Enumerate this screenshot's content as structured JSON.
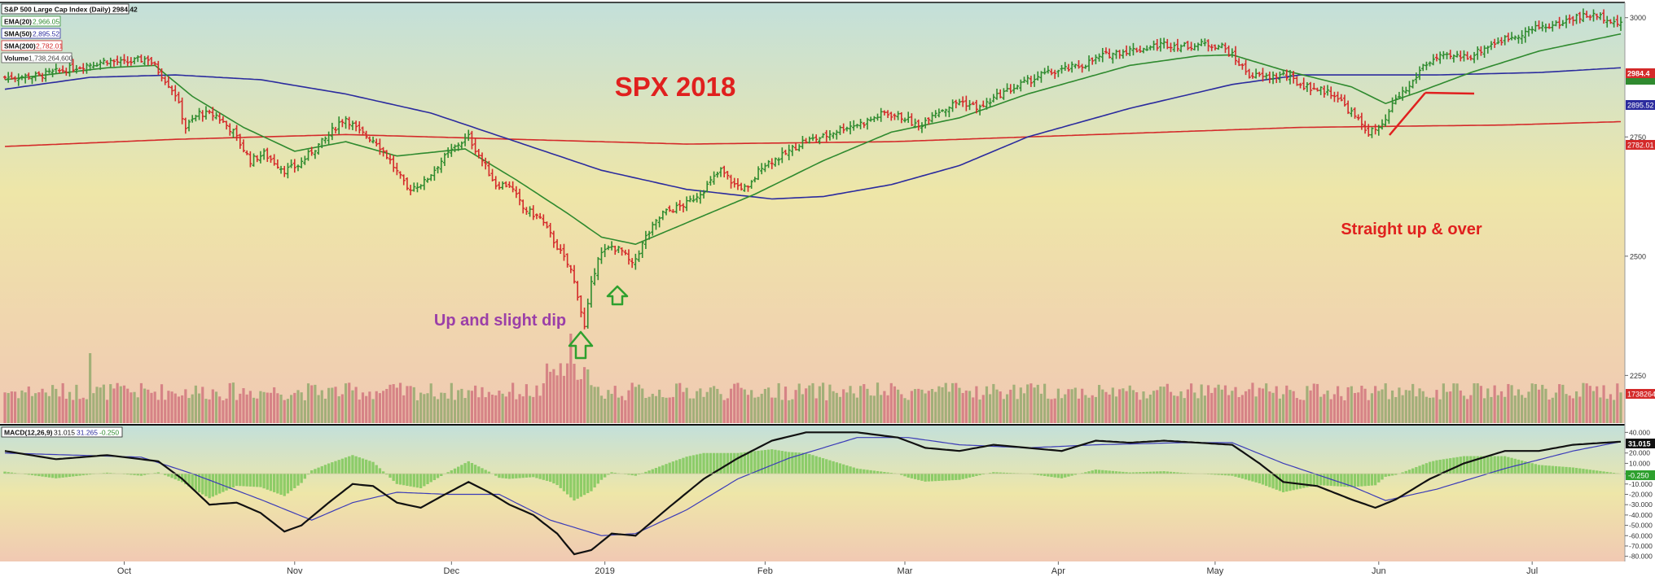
{
  "header": {
    "title": "S&P 500 Large Cap Index (Daily) 2984.42"
  },
  "legend": [
    {
      "label": "EMA(20)",
      "value": "2,966.05",
      "color": "#2f8a2f"
    },
    {
      "label": "SMA(50)",
      "value": "2,895.52",
      "color": "#2b2b9e"
    },
    {
      "label": "SMA(200)",
      "value": "2,782.01",
      "color": "#d42a2a"
    },
    {
      "label": "Volume",
      "value": "1,738,264,600",
      "color": "#555555"
    }
  ],
  "macd_legend": {
    "label": "MACD(12,26,9)",
    "v1": "31.015",
    "v2": "31.265",
    "v3": "-0.250"
  },
  "annotations": {
    "title": "SPX 2018",
    "left_note": "Up and slight dip",
    "right_note": "Straight up & over"
  },
  "price_badges": {
    "last": "2984.4",
    "sma50": "2895.52",
    "sma200": "2782.01",
    "volume": "1738264"
  },
  "macd_badges": {
    "macd": "31.015",
    "hist": "-0.250"
  },
  "colors": {
    "up": "#2e8b2e",
    "down": "#d42a2a",
    "ema20": "#2f8a2f",
    "sma50": "#2b2b9e",
    "sma200": "#d42a2a",
    "title_red": "#e0201e",
    "note_purple": "#9b3fa8",
    "arrow_green": "#2ea02e"
  },
  "chart_data": {
    "type": "line",
    "price_axis": {
      "ticks": [
        2250,
        2500,
        2750,
        3000
      ],
      "ylim": [
        2150,
        3020
      ]
    },
    "macd_axis": {
      "ticks": [
        40,
        20,
        10,
        0,
        -10,
        -20,
        -30,
        -40,
        -50,
        -60,
        -70,
        -80
      ],
      "tick_labels": [
        "40.000",
        "20.000",
        "10.000",
        "0.000",
        "-10.000",
        "-20.000",
        "-30.000",
        "-40.000",
        "-50.000",
        "-60.000",
        "-70.000",
        "-80.000"
      ],
      "ylim": [
        -85,
        45
      ]
    },
    "x_labels": [
      "Oct",
      "Nov",
      "Dec",
      "2019",
      "Feb",
      "Mar",
      "Apr",
      "May",
      "Jun",
      "Jul"
    ],
    "x_label_days": [
      35,
      85,
      131,
      176,
      223,
      264,
      309,
      355,
      403,
      448
    ],
    "n_days": 474,
    "close_anchors": [
      [
        0,
        2875
      ],
      [
        10,
        2878
      ],
      [
        20,
        2895
      ],
      [
        30,
        2910
      ],
      [
        35,
        2905
      ],
      [
        42,
        2915
      ],
      [
        46,
        2880
      ],
      [
        50,
        2840
      ],
      [
        53,
        2770
      ],
      [
        57,
        2800
      ],
      [
        62,
        2795
      ],
      [
        67,
        2760
      ],
      [
        72,
        2700
      ],
      [
        76,
        2715
      ],
      [
        82,
        2680
      ],
      [
        86,
        2690
      ],
      [
        90,
        2720
      ],
      [
        94,
        2745
      ],
      [
        98,
        2780
      ],
      [
        100,
        2790
      ],
      [
        104,
        2760
      ],
      [
        109,
        2740
      ],
      [
        113,
        2700
      ],
      [
        118,
        2640
      ],
      [
        123,
        2655
      ],
      [
        128,
        2700
      ],
      [
        133,
        2735
      ],
      [
        136,
        2750
      ],
      [
        140,
        2700
      ],
      [
        144,
        2650
      ],
      [
        148,
        2650
      ],
      [
        152,
        2600
      ],
      [
        157,
        2580
      ],
      [
        162,
        2520
      ],
      [
        166,
        2470
      ],
      [
        168,
        2420
      ],
      [
        170,
        2350
      ],
      [
        172,
        2440
      ],
      [
        174,
        2500
      ],
      [
        178,
        2520
      ],
      [
        181,
        2510
      ],
      [
        184,
        2480
      ],
      [
        188,
        2540
      ],
      [
        193,
        2590
      ],
      [
        200,
        2610
      ],
      [
        205,
        2640
      ],
      [
        210,
        2680
      ],
      [
        214,
        2650
      ],
      [
        218,
        2640
      ],
      [
        222,
        2690
      ],
      [
        228,
        2710
      ],
      [
        234,
        2740
      ],
      [
        240,
        2750
      ],
      [
        246,
        2770
      ],
      [
        252,
        2780
      ],
      [
        258,
        2800
      ],
      [
        264,
        2790
      ],
      [
        268,
        2770
      ],
      [
        272,
        2800
      ],
      [
        276,
        2810
      ],
      [
        280,
        2825
      ],
      [
        286,
        2810
      ],
      [
        292,
        2840
      ],
      [
        298,
        2860
      ],
      [
        304,
        2880
      ],
      [
        310,
        2890
      ],
      [
        316,
        2900
      ],
      [
        322,
        2920
      ],
      [
        328,
        2930
      ],
      [
        334,
        2935
      ],
      [
        340,
        2945
      ],
      [
        346,
        2940
      ],
      [
        352,
        2945
      ],
      [
        357,
        2940
      ],
      [
        360,
        2920
      ],
      [
        365,
        2880
      ],
      [
        370,
        2875
      ],
      [
        375,
        2880
      ],
      [
        380,
        2860
      ],
      [
        385,
        2850
      ],
      [
        390,
        2840
      ],
      [
        395,
        2800
      ],
      [
        400,
        2760
      ],
      [
        404,
        2770
      ],
      [
        408,
        2830
      ],
      [
        412,
        2855
      ],
      [
        416,
        2900
      ],
      [
        420,
        2915
      ],
      [
        425,
        2918
      ],
      [
        430,
        2920
      ],
      [
        436,
        2945
      ],
      [
        440,
        2955
      ],
      [
        446,
        2970
      ],
      [
        450,
        2980
      ],
      [
        455,
        2985
      ],
      [
        460,
        3000
      ],
      [
        465,
        3005
      ],
      [
        470,
        3000
      ],
      [
        474,
        2984
      ]
    ],
    "ema20_anchors": [
      [
        0,
        2870
      ],
      [
        30,
        2895
      ],
      [
        44,
        2900
      ],
      [
        55,
        2835
      ],
      [
        70,
        2770
      ],
      [
        85,
        2720
      ],
      [
        100,
        2740
      ],
      [
        115,
        2710
      ],
      [
        135,
        2725
      ],
      [
        150,
        2660
      ],
      [
        165,
        2590
      ],
      [
        175,
        2540
      ],
      [
        185,
        2525
      ],
      [
        200,
        2570
      ],
      [
        220,
        2630
      ],
      [
        240,
        2700
      ],
      [
        260,
        2760
      ],
      [
        280,
        2790
      ],
      [
        300,
        2840
      ],
      [
        330,
        2900
      ],
      [
        350,
        2920
      ],
      [
        360,
        2922
      ],
      [
        375,
        2890
      ],
      [
        395,
        2855
      ],
      [
        405,
        2820
      ],
      [
        415,
        2845
      ],
      [
        430,
        2885
      ],
      [
        450,
        2930
      ],
      [
        474,
        2966
      ]
    ],
    "sma50_anchors": [
      [
        0,
        2850
      ],
      [
        25,
        2875
      ],
      [
        50,
        2880
      ],
      [
        75,
        2870
      ],
      [
        100,
        2840
      ],
      [
        125,
        2800
      ],
      [
        150,
        2740
      ],
      [
        175,
        2680
      ],
      [
        200,
        2640
      ],
      [
        225,
        2620
      ],
      [
        240,
        2625
      ],
      [
        260,
        2650
      ],
      [
        280,
        2690
      ],
      [
        300,
        2750
      ],
      [
        330,
        2810
      ],
      [
        360,
        2860
      ],
      [
        380,
        2880
      ],
      [
        400,
        2880
      ],
      [
        420,
        2880
      ],
      [
        450,
        2885
      ],
      [
        474,
        2895
      ]
    ],
    "sma200_anchors": [
      [
        0,
        2730
      ],
      [
        50,
        2745
      ],
      [
        100,
        2755
      ],
      [
        150,
        2745
      ],
      [
        200,
        2735
      ],
      [
        260,
        2740
      ],
      [
        320,
        2755
      ],
      [
        380,
        2770
      ],
      [
        440,
        2775
      ],
      [
        474,
        2782
      ]
    ],
    "macd_anchors": [
      [
        0,
        22
      ],
      [
        15,
        14
      ],
      [
        30,
        18
      ],
      [
        45,
        12
      ],
      [
        52,
        -5
      ],
      [
        60,
        -30
      ],
      [
        68,
        -28
      ],
      [
        75,
        -38
      ],
      [
        82,
        -56
      ],
      [
        87,
        -50
      ],
      [
        95,
        -28
      ],
      [
        102,
        -10
      ],
      [
        108,
        -12
      ],
      [
        115,
        -28
      ],
      [
        122,
        -33
      ],
      [
        128,
        -22
      ],
      [
        136,
        -8
      ],
      [
        142,
        -18
      ],
      [
        148,
        -30
      ],
      [
        155,
        -40
      ],
      [
        162,
        -58
      ],
      [
        167,
        -78
      ],
      [
        172,
        -74
      ],
      [
        178,
        -58
      ],
      [
        185,
        -60
      ],
      [
        195,
        -32
      ],
      [
        205,
        -5
      ],
      [
        215,
        15
      ],
      [
        225,
        32
      ],
      [
        235,
        40
      ],
      [
        250,
        40
      ],
      [
        262,
        35
      ],
      [
        270,
        25
      ],
      [
        280,
        22
      ],
      [
        290,
        28
      ],
      [
        300,
        25
      ],
      [
        310,
        22
      ],
      [
        320,
        32
      ],
      [
        330,
        30
      ],
      [
        340,
        32
      ],
      [
        350,
        30
      ],
      [
        360,
        28
      ],
      [
        368,
        10
      ],
      [
        375,
        -8
      ],
      [
        385,
        -12
      ],
      [
        395,
        -25
      ],
      [
        402,
        -33
      ],
      [
        408,
        -25
      ],
      [
        418,
        -5
      ],
      [
        428,
        10
      ],
      [
        440,
        22
      ],
      [
        450,
        22
      ],
      [
        460,
        28
      ],
      [
        474,
        31
      ]
    ],
    "signal_anchors": [
      [
        0,
        20
      ],
      [
        40,
        16
      ],
      [
        55,
        0
      ],
      [
        75,
        -25
      ],
      [
        90,
        -45
      ],
      [
        102,
        -28
      ],
      [
        115,
        -18
      ],
      [
        130,
        -20
      ],
      [
        145,
        -20
      ],
      [
        160,
        -45
      ],
      [
        175,
        -60
      ],
      [
        185,
        -58
      ],
      [
        200,
        -35
      ],
      [
        215,
        -5
      ],
      [
        230,
        15
      ],
      [
        250,
        35
      ],
      [
        265,
        35
      ],
      [
        280,
        28
      ],
      [
        300,
        25
      ],
      [
        320,
        28
      ],
      [
        345,
        30
      ],
      [
        360,
        30
      ],
      [
        375,
        10
      ],
      [
        395,
        -12
      ],
      [
        405,
        -26
      ],
      [
        420,
        -15
      ],
      [
        440,
        5
      ],
      [
        460,
        22
      ],
      [
        474,
        31
      ]
    ]
  }
}
